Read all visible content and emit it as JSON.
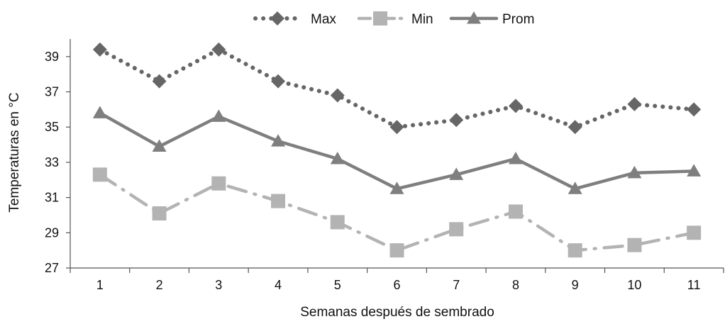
{
  "chart_data": {
    "type": "line",
    "title": "",
    "xlabel": "Semanas después de sembrado",
    "ylabel": "Temperaturas en °C",
    "categories": [
      "1",
      "2",
      "3",
      "4",
      "5",
      "6",
      "7",
      "8",
      "9",
      "10",
      "11"
    ],
    "ylim": [
      27,
      40
    ],
    "yticks": [
      27,
      29,
      31,
      33,
      35,
      37,
      39
    ],
    "grid": false,
    "legend_position": "top-center",
    "series": [
      {
        "name": "Max",
        "line_style": "dotted",
        "marker": "diamond",
        "color": "#666666",
        "values": [
          39.4,
          37.6,
          39.4,
          37.6,
          36.8,
          35.0,
          35.4,
          36.2,
          35.0,
          36.3,
          36.0
        ]
      },
      {
        "name": "Min",
        "line_style": "dash-dot",
        "marker": "square",
        "color": "#b3b3b3",
        "values": [
          32.3,
          30.1,
          31.8,
          30.8,
          29.6,
          28.0,
          29.2,
          30.2,
          28.0,
          28.3,
          29.0
        ]
      },
      {
        "name": "Prom",
        "line_style": "solid",
        "marker": "triangle",
        "color": "#7f7f7f",
        "values": [
          35.8,
          33.9,
          35.6,
          34.2,
          33.2,
          31.5,
          32.3,
          33.2,
          31.5,
          32.4,
          32.5
        ]
      }
    ]
  }
}
